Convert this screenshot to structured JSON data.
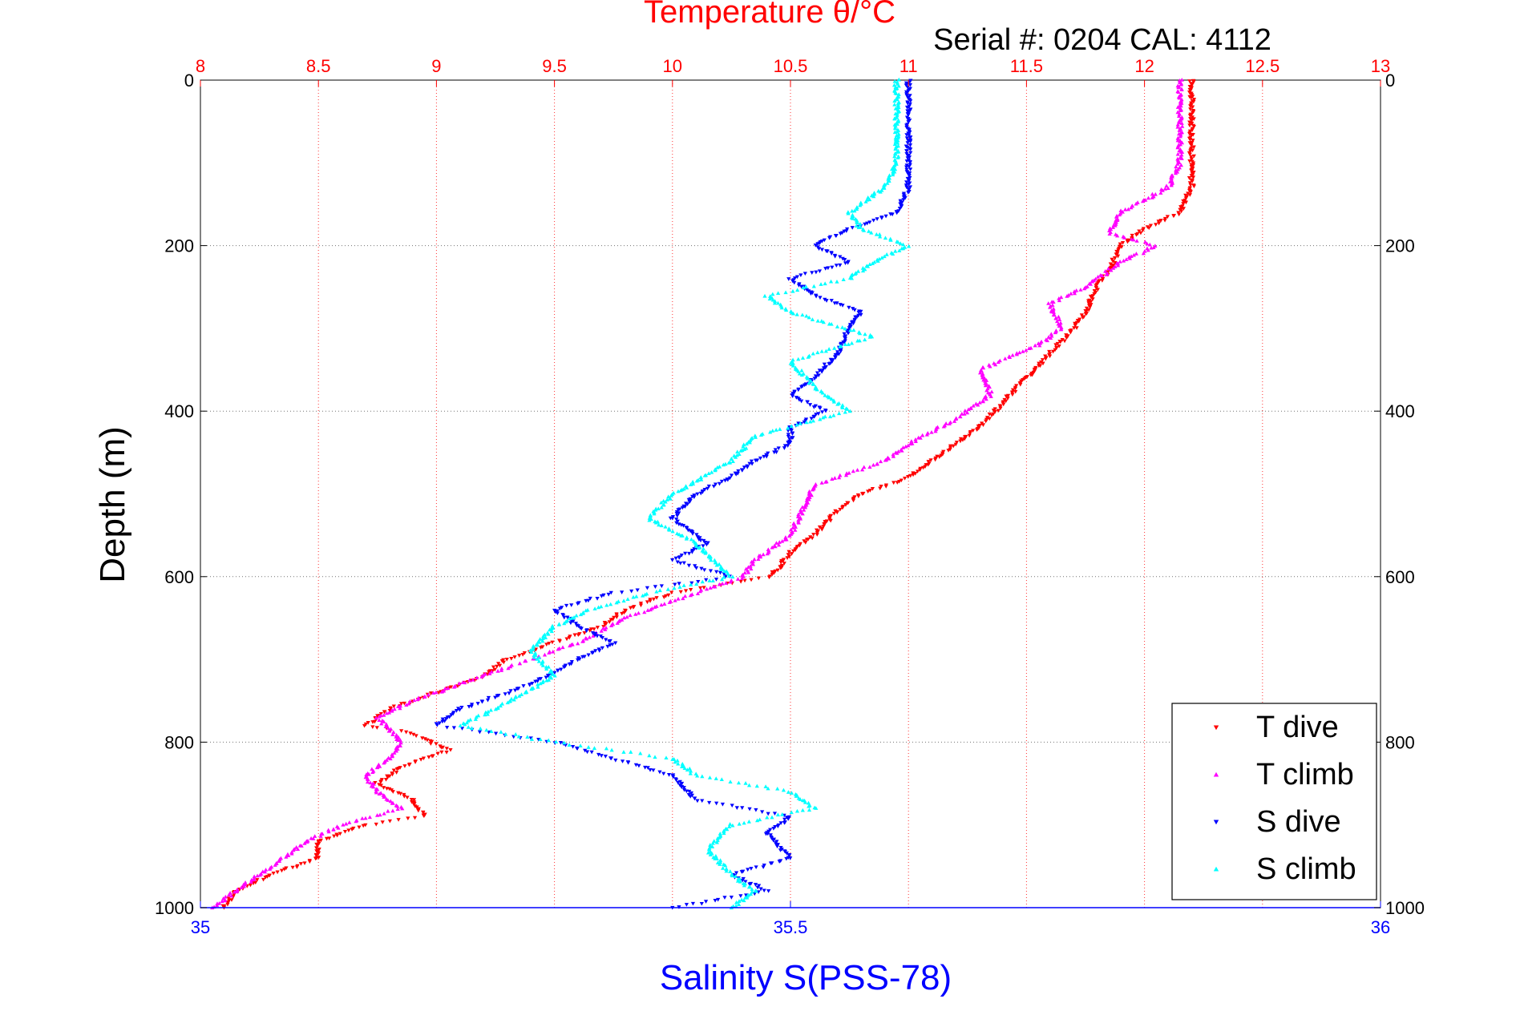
{
  "chart_data": {
    "type": "scatter",
    "title": "Temperature θ/°C",
    "subtitle": "Serial #: 0204  CAL: 4112",
    "xlabel": "Salinity S(PSS-78)",
    "ylabel": "Depth (m)",
    "x_top": {
      "label": "Temperature θ/°C",
      "lim": [
        8,
        13
      ],
      "ticks": [
        "8",
        "8.5",
        "9",
        "9.5",
        "10",
        "10.5",
        "11",
        "11.5",
        "12",
        "12.5",
        "13"
      ],
      "color": "#ff0000"
    },
    "x_bottom": {
      "label": "Salinity S(PSS-78)",
      "lim": [
        35,
        36
      ],
      "ticks": [
        "35",
        "35.5",
        "36"
      ],
      "color": "#0000ff"
    },
    "y": {
      "lim": [
        0,
        1000
      ],
      "reversed": true,
      "ticks": [
        "0",
        "200",
        "400",
        "600",
        "800",
        "1000"
      ]
    },
    "grid": true,
    "legend_position": "bottom-right",
    "series": [
      {
        "name": "T dive",
        "axis": "temperature",
        "color": "#ff0000",
        "marker": "triangle-down",
        "points": [
          [
            12.2,
            0
          ],
          [
            12.2,
            50
          ],
          [
            12.2,
            100
          ],
          [
            12.2,
            130
          ],
          [
            12.15,
            160
          ],
          [
            12.0,
            180
          ],
          [
            11.9,
            200
          ],
          [
            11.85,
            230
          ],
          [
            11.8,
            250
          ],
          [
            11.75,
            280
          ],
          [
            11.7,
            300
          ],
          [
            11.6,
            330
          ],
          [
            11.5,
            360
          ],
          [
            11.4,
            390
          ],
          [
            11.3,
            420
          ],
          [
            11.2,
            440
          ],
          [
            11.1,
            460
          ],
          [
            11.0,
            480
          ],
          [
            10.8,
            500
          ],
          [
            10.7,
            520
          ],
          [
            10.6,
            550
          ],
          [
            10.5,
            570
          ],
          [
            10.45,
            590
          ],
          [
            10.4,
            600
          ],
          [
            10.0,
            620
          ],
          [
            9.8,
            640
          ],
          [
            9.7,
            660
          ],
          [
            9.5,
            680
          ],
          [
            9.3,
            700
          ],
          [
            9.2,
            720
          ],
          [
            9.0,
            740
          ],
          [
            8.8,
            760
          ],
          [
            8.7,
            780
          ],
          [
            8.9,
            790
          ],
          [
            9.05,
            810
          ],
          [
            8.85,
            830
          ],
          [
            8.75,
            850
          ],
          [
            8.9,
            870
          ],
          [
            8.95,
            890
          ],
          [
            8.7,
            900
          ],
          [
            8.5,
            920
          ],
          [
            8.5,
            940
          ],
          [
            8.3,
            960
          ],
          [
            8.15,
            980
          ],
          [
            8.1,
            1000
          ]
        ]
      },
      {
        "name": "T climb",
        "axis": "temperature",
        "color": "#ff00ff",
        "marker": "triangle-up",
        "points": [
          [
            12.15,
            0
          ],
          [
            12.15,
            50
          ],
          [
            12.15,
            100
          ],
          [
            12.1,
            130
          ],
          [
            11.9,
            160
          ],
          [
            11.85,
            185
          ],
          [
            12.05,
            200
          ],
          [
            11.9,
            220
          ],
          [
            11.75,
            250
          ],
          [
            11.6,
            270
          ],
          [
            11.65,
            300
          ],
          [
            11.55,
            320
          ],
          [
            11.3,
            350
          ],
          [
            11.35,
            380
          ],
          [
            11.2,
            410
          ],
          [
            11.0,
            440
          ],
          [
            10.9,
            460
          ],
          [
            10.6,
            490
          ],
          [
            10.55,
            520
          ],
          [
            10.5,
            550
          ],
          [
            10.35,
            580
          ],
          [
            10.3,
            600
          ],
          [
            10.1,
            620
          ],
          [
            9.8,
            650
          ],
          [
            9.6,
            680
          ],
          [
            9.4,
            700
          ],
          [
            9.2,
            720
          ],
          [
            8.9,
            750
          ],
          [
            8.75,
            770
          ],
          [
            8.85,
            800
          ],
          [
            8.8,
            820
          ],
          [
            8.7,
            840
          ],
          [
            8.75,
            860
          ],
          [
            8.85,
            880
          ],
          [
            8.6,
            900
          ],
          [
            8.45,
            920
          ],
          [
            8.3,
            950
          ],
          [
            8.15,
            980
          ],
          [
            8.05,
            1000
          ]
        ]
      },
      {
        "name": "S dive",
        "axis": "salinity",
        "color": "#0000ff",
        "marker": "triangle-down",
        "points": [
          [
            35.6,
            0
          ],
          [
            35.6,
            50
          ],
          [
            35.6,
            100
          ],
          [
            35.6,
            130
          ],
          [
            35.59,
            160
          ],
          [
            35.55,
            180
          ],
          [
            35.52,
            200
          ],
          [
            35.55,
            220
          ],
          [
            35.5,
            240
          ],
          [
            35.52,
            260
          ],
          [
            35.56,
            280
          ],
          [
            35.55,
            300
          ],
          [
            35.54,
            330
          ],
          [
            35.52,
            360
          ],
          [
            35.5,
            380
          ],
          [
            35.53,
            400
          ],
          [
            35.5,
            420
          ],
          [
            35.5,
            440
          ],
          [
            35.47,
            460
          ],
          [
            35.45,
            480
          ],
          [
            35.42,
            500
          ],
          [
            35.4,
            530
          ],
          [
            35.43,
            560
          ],
          [
            35.4,
            580
          ],
          [
            35.45,
            600
          ],
          [
            35.35,
            620
          ],
          [
            35.3,
            640
          ],
          [
            35.32,
            660
          ],
          [
            35.35,
            680
          ],
          [
            35.32,
            700
          ],
          [
            35.28,
            730
          ],
          [
            35.22,
            760
          ],
          [
            35.2,
            780
          ],
          [
            35.3,
            800
          ],
          [
            35.35,
            820
          ],
          [
            35.4,
            840
          ],
          [
            35.42,
            870
          ],
          [
            35.5,
            890
          ],
          [
            35.48,
            910
          ],
          [
            35.5,
            940
          ],
          [
            35.45,
            960
          ],
          [
            35.48,
            980
          ],
          [
            35.4,
            1000
          ]
        ]
      },
      {
        "name": "S climb",
        "axis": "salinity",
        "color": "#00ffff",
        "marker": "triangle-up",
        "points": [
          [
            35.59,
            0
          ],
          [
            35.59,
            50
          ],
          [
            35.59,
            100
          ],
          [
            35.58,
            130
          ],
          [
            35.55,
            160
          ],
          [
            35.56,
            180
          ],
          [
            35.6,
            200
          ],
          [
            35.57,
            220
          ],
          [
            35.55,
            240
          ],
          [
            35.48,
            260
          ],
          [
            35.5,
            280
          ],
          [
            35.57,
            310
          ],
          [
            35.5,
            340
          ],
          [
            35.52,
            370
          ],
          [
            35.55,
            400
          ],
          [
            35.47,
            430
          ],
          [
            35.45,
            460
          ],
          [
            35.4,
            500
          ],
          [
            35.38,
            530
          ],
          [
            35.42,
            560
          ],
          [
            35.45,
            600
          ],
          [
            35.38,
            620
          ],
          [
            35.33,
            640
          ],
          [
            35.3,
            660
          ],
          [
            35.28,
            690
          ],
          [
            35.3,
            720
          ],
          [
            35.25,
            760
          ],
          [
            35.22,
            780
          ],
          [
            35.3,
            800
          ],
          [
            35.4,
            820
          ],
          [
            35.42,
            840
          ],
          [
            35.5,
            860
          ],
          [
            35.52,
            880
          ],
          [
            35.45,
            900
          ],
          [
            35.43,
            930
          ],
          [
            35.45,
            960
          ],
          [
            35.47,
            980
          ],
          [
            35.45,
            1000
          ]
        ]
      }
    ]
  }
}
